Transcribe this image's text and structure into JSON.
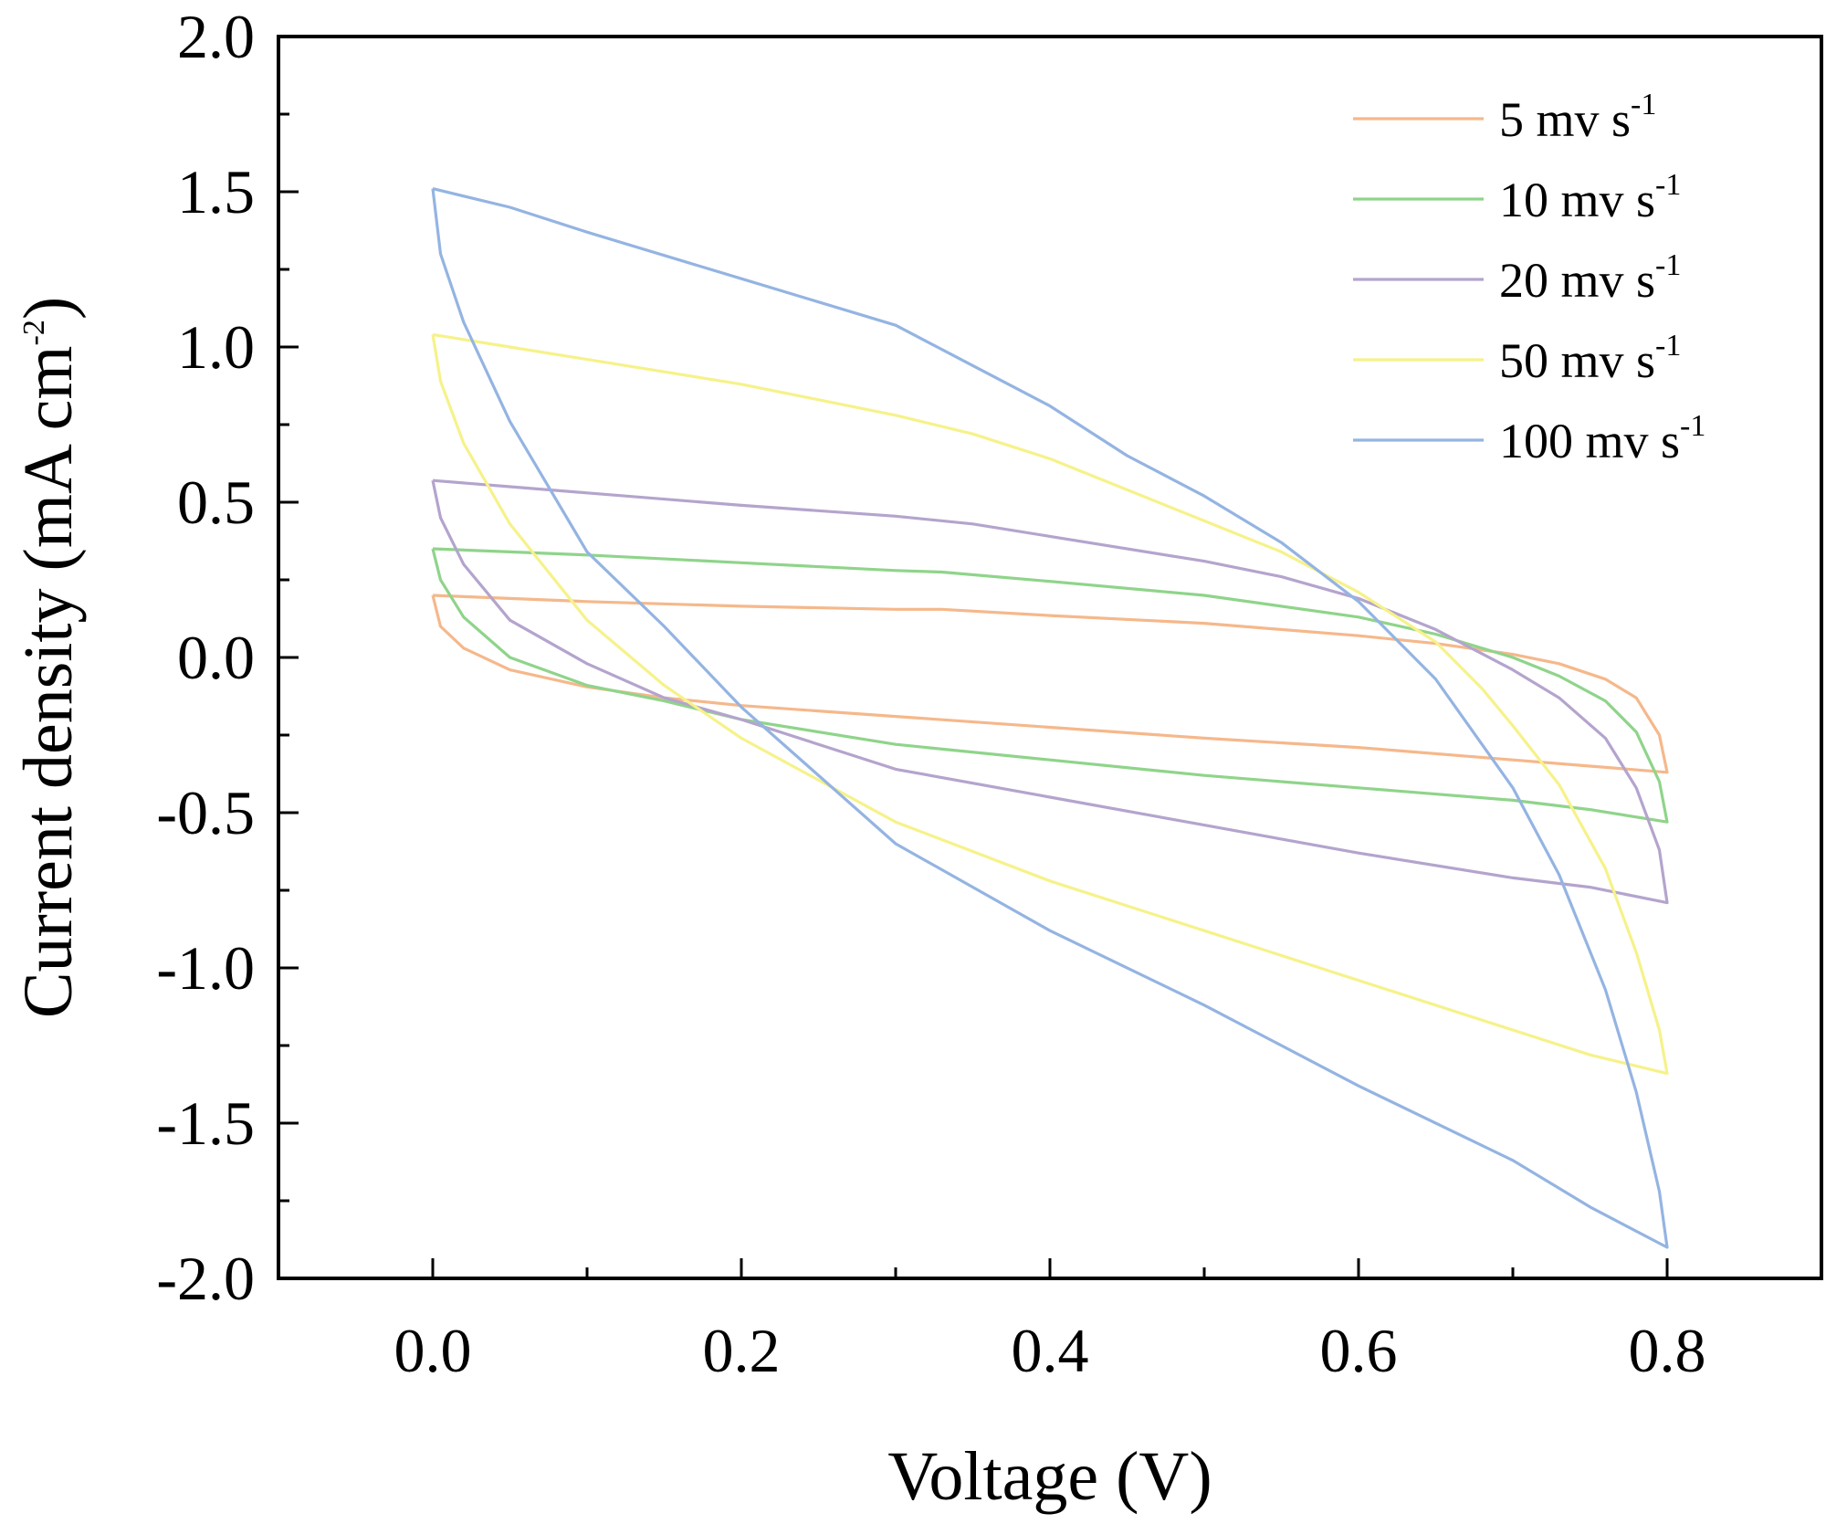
{
  "chart_data": {
    "type": "line",
    "xlabel": "Voltage (V)",
    "ylabel": {
      "main": "Current density (mA cm",
      "sup": "-2",
      "end": ")"
    },
    "xlim": [
      -0.1,
      0.9
    ],
    "ylim": [
      -2.0,
      2.0
    ],
    "x_ticks": [
      0.0,
      0.2,
      0.4,
      0.6,
      0.8
    ],
    "x_tick_labels": [
      "0.0",
      "0.2",
      "0.4",
      "0.6",
      "0.8"
    ],
    "x_minor_ticks": [
      -0.1,
      0.1,
      0.3,
      0.5,
      0.7,
      0.9
    ],
    "y_ticks": [
      -2.0,
      -1.5,
      -1.0,
      -0.5,
      0.0,
      0.5,
      1.0,
      1.5,
      2.0
    ],
    "y_tick_labels": [
      "-2.0",
      "-1.5",
      "-1.0",
      "-0.5",
      "0.0",
      "0.5",
      "1.0",
      "1.5",
      "2.0"
    ],
    "y_minor_ticks": [
      -1.75,
      -1.25,
      -0.75,
      -0.25,
      0.25,
      0.75,
      1.25,
      1.75
    ],
    "grid": false,
    "legend_position": "top-right",
    "series": [
      {
        "name": "5 mv s",
        "sup": "-1",
        "color": "#f5b88b",
        "points": [
          [
            0.0,
            0.2
          ],
          [
            0.05,
            0.19
          ],
          [
            0.1,
            0.18
          ],
          [
            0.2,
            0.165
          ],
          [
            0.3,
            0.155
          ],
          [
            0.33,
            0.155
          ],
          [
            0.4,
            0.135
          ],
          [
            0.5,
            0.11
          ],
          [
            0.6,
            0.07
          ],
          [
            0.65,
            0.045
          ],
          [
            0.7,
            0.01
          ],
          [
            0.73,
            -0.02
          ],
          [
            0.76,
            -0.07
          ],
          [
            0.78,
            -0.13
          ],
          [
            0.795,
            -0.25
          ],
          [
            0.8,
            -0.37
          ],
          [
            0.75,
            -0.35
          ],
          [
            0.7,
            -0.33
          ],
          [
            0.6,
            -0.29
          ],
          [
            0.5,
            -0.26
          ],
          [
            0.4,
            -0.225
          ],
          [
            0.3,
            -0.19
          ],
          [
            0.2,
            -0.155
          ],
          [
            0.15,
            -0.13
          ],
          [
            0.1,
            -0.095
          ],
          [
            0.05,
            -0.04
          ],
          [
            0.02,
            0.03
          ],
          [
            0.005,
            0.1
          ],
          [
            0.0,
            0.2
          ]
        ]
      },
      {
        "name": "10 mv s",
        "sup": "-1",
        "color": "#8fd48a",
        "points": [
          [
            0.0,
            0.35
          ],
          [
            0.05,
            0.34
          ],
          [
            0.1,
            0.33
          ],
          [
            0.2,
            0.305
          ],
          [
            0.3,
            0.28
          ],
          [
            0.33,
            0.275
          ],
          [
            0.4,
            0.245
          ],
          [
            0.5,
            0.2
          ],
          [
            0.6,
            0.13
          ],
          [
            0.65,
            0.075
          ],
          [
            0.7,
            0.0
          ],
          [
            0.73,
            -0.06
          ],
          [
            0.76,
            -0.14
          ],
          [
            0.78,
            -0.24
          ],
          [
            0.795,
            -0.4
          ],
          [
            0.8,
            -0.53
          ],
          [
            0.75,
            -0.49
          ],
          [
            0.7,
            -0.46
          ],
          [
            0.6,
            -0.42
          ],
          [
            0.5,
            -0.38
          ],
          [
            0.4,
            -0.33
          ],
          [
            0.3,
            -0.28
          ],
          [
            0.2,
            -0.2
          ],
          [
            0.15,
            -0.14
          ],
          [
            0.1,
            -0.09
          ],
          [
            0.05,
            0.0
          ],
          [
            0.02,
            0.13
          ],
          [
            0.005,
            0.25
          ],
          [
            0.0,
            0.35
          ]
        ]
      },
      {
        "name": "20 mv s",
        "sup": "-1",
        "color": "#b4a4cd",
        "points": [
          [
            0.0,
            0.57
          ],
          [
            0.05,
            0.55
          ],
          [
            0.1,
            0.53
          ],
          [
            0.2,
            0.49
          ],
          [
            0.3,
            0.455
          ],
          [
            0.35,
            0.43
          ],
          [
            0.4,
            0.39
          ],
          [
            0.5,
            0.31
          ],
          [
            0.55,
            0.26
          ],
          [
            0.6,
            0.19
          ],
          [
            0.65,
            0.09
          ],
          [
            0.7,
            -0.04
          ],
          [
            0.73,
            -0.13
          ],
          [
            0.76,
            -0.26
          ],
          [
            0.78,
            -0.42
          ],
          [
            0.795,
            -0.62
          ],
          [
            0.8,
            -0.79
          ],
          [
            0.75,
            -0.74
          ],
          [
            0.7,
            -0.71
          ],
          [
            0.6,
            -0.63
          ],
          [
            0.5,
            -0.54
          ],
          [
            0.4,
            -0.45
          ],
          [
            0.3,
            -0.36
          ],
          [
            0.2,
            -0.2
          ],
          [
            0.15,
            -0.13
          ],
          [
            0.1,
            -0.02
          ],
          [
            0.05,
            0.12
          ],
          [
            0.02,
            0.3
          ],
          [
            0.005,
            0.45
          ],
          [
            0.0,
            0.57
          ]
        ]
      },
      {
        "name": "50 mv s",
        "sup": "-1",
        "color": "#f6f28a",
        "points": [
          [
            0.0,
            1.04
          ],
          [
            0.05,
            1.0
          ],
          [
            0.1,
            0.96
          ],
          [
            0.2,
            0.88
          ],
          [
            0.3,
            0.78
          ],
          [
            0.35,
            0.72
          ],
          [
            0.4,
            0.64
          ],
          [
            0.45,
            0.54
          ],
          [
            0.5,
            0.44
          ],
          [
            0.55,
            0.34
          ],
          [
            0.6,
            0.21
          ],
          [
            0.65,
            0.05
          ],
          [
            0.68,
            -0.1
          ],
          [
            0.7,
            -0.22
          ],
          [
            0.73,
            -0.41
          ],
          [
            0.76,
            -0.68
          ],
          [
            0.78,
            -0.95
          ],
          [
            0.795,
            -1.2
          ],
          [
            0.8,
            -1.34
          ],
          [
            0.75,
            -1.28
          ],
          [
            0.7,
            -1.2
          ],
          [
            0.6,
            -1.04
          ],
          [
            0.5,
            -0.88
          ],
          [
            0.4,
            -0.72
          ],
          [
            0.3,
            -0.53
          ],
          [
            0.2,
            -0.26
          ],
          [
            0.15,
            -0.09
          ],
          [
            0.1,
            0.12
          ],
          [
            0.05,
            0.43
          ],
          [
            0.02,
            0.69
          ],
          [
            0.005,
            0.89
          ],
          [
            0.0,
            1.04
          ]
        ]
      },
      {
        "name": "100 mv s",
        "sup": "-1",
        "color": "#94b4e2",
        "points": [
          [
            0.0,
            1.51
          ],
          [
            0.05,
            1.45
          ],
          [
            0.1,
            1.37
          ],
          [
            0.2,
            1.22
          ],
          [
            0.3,
            1.07
          ],
          [
            0.35,
            0.94
          ],
          [
            0.4,
            0.81
          ],
          [
            0.45,
            0.65
          ],
          [
            0.5,
            0.52
          ],
          [
            0.55,
            0.37
          ],
          [
            0.6,
            0.18
          ],
          [
            0.65,
            -0.07
          ],
          [
            0.7,
            -0.42
          ],
          [
            0.73,
            -0.7
          ],
          [
            0.76,
            -1.07
          ],
          [
            0.78,
            -1.4
          ],
          [
            0.795,
            -1.72
          ],
          [
            0.8,
            -1.9
          ],
          [
            0.75,
            -1.77
          ],
          [
            0.7,
            -1.62
          ],
          [
            0.6,
            -1.38
          ],
          [
            0.5,
            -1.12
          ],
          [
            0.4,
            -0.88
          ],
          [
            0.3,
            -0.6
          ],
          [
            0.2,
            -0.16
          ],
          [
            0.15,
            0.1
          ],
          [
            0.1,
            0.34
          ],
          [
            0.05,
            0.76
          ],
          [
            0.02,
            1.08
          ],
          [
            0.005,
            1.3
          ],
          [
            0.0,
            1.51
          ]
        ]
      }
    ]
  }
}
